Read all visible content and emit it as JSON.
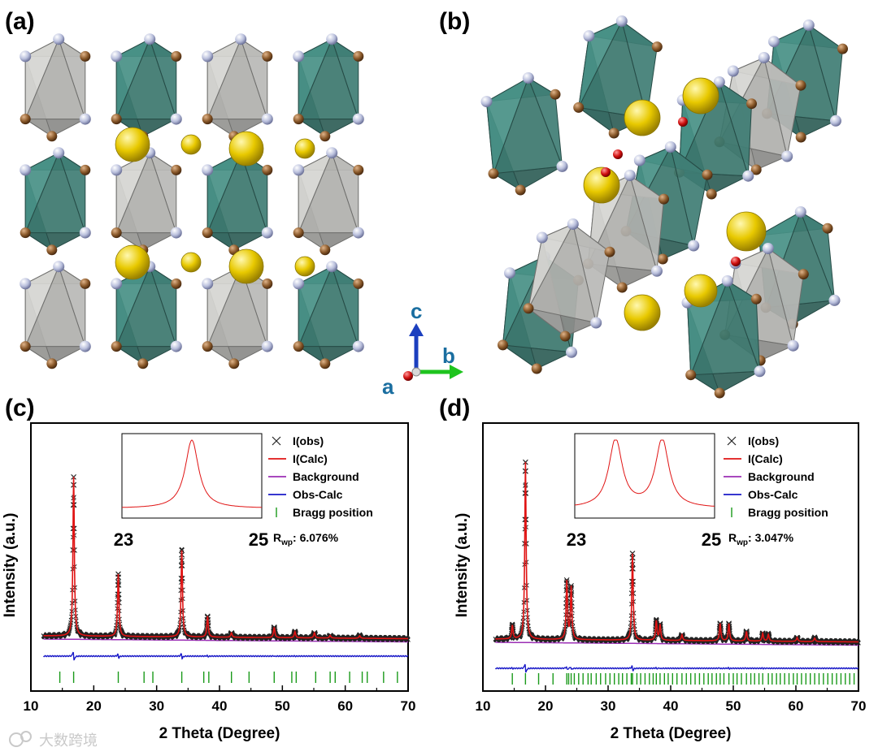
{
  "panels": {
    "a": "(a)",
    "b": "(b)",
    "c": "(c)",
    "d": "(d)"
  },
  "axes_triad": {
    "a": "a",
    "b": "b",
    "c": "c",
    "color_c": "#1c3fbf",
    "color_b": "#1ec41e",
    "color_a": "#c81414"
  },
  "colors": {
    "teal": "#3f7d74",
    "grey": "#b9b9b6",
    "brown": "#8b5a2b",
    "pale": "#b9bfdc",
    "yellow": "#e8c900",
    "obs": "#222222",
    "calc": "#e01414",
    "bg": "#9b2fb5",
    "diff": "#1a1ac8",
    "bragg": "#1a9a1a"
  },
  "watermark": "大数跨境",
  "legend": {
    "obs": "I(obs)",
    "calc": "I(Calc)",
    "bg": "Background",
    "diff": "Obs-Calc",
    "bragg": "Bragg position"
  },
  "chart_data": [
    {
      "type": "line",
      "panel": "c",
      "xlabel": "2 Theta (Degree)",
      "ylabel": "Intensity (a.u.)",
      "xlim": [
        10,
        70
      ],
      "xticks": [
        "10",
        "20",
        "30",
        "40",
        "50",
        "60",
        "70"
      ],
      "rwp_prefix": "R",
      "rwp_sub": "wp",
      "rwp_value": ": 6.076%",
      "inset": {
        "xmin_label": "23",
        "xmax_label": "25",
        "peak_positions": [
          24.0
        ]
      },
      "peaks": [
        {
          "pos": 16.8,
          "h": 0.92
        },
        {
          "pos": 23.9,
          "h": 0.36
        },
        {
          "pos": 34.0,
          "h": 0.5
        },
        {
          "pos": 38.1,
          "h": 0.12
        },
        {
          "pos": 41.9,
          "h": 0.025
        },
        {
          "pos": 48.7,
          "h": 0.06
        },
        {
          "pos": 52.0,
          "h": 0.035
        },
        {
          "pos": 55.1,
          "h": 0.03
        },
        {
          "pos": 57.6,
          "h": 0.015
        },
        {
          "pos": 62.3,
          "h": 0.015
        }
      ],
      "bragg_positions": [
        14.6,
        16.8,
        23.9,
        28.0,
        29.4,
        34.0,
        37.5,
        38.3,
        41.9,
        44.7,
        48.7,
        51.5,
        52.2,
        55.3,
        57.6,
        58.4,
        60.7,
        62.7,
        63.5,
        66.1,
        68.3
      ]
    },
    {
      "type": "line",
      "panel": "d",
      "xlabel": "2 Theta (Degree)",
      "ylabel": "Intensity (a.u.)",
      "xlim": [
        10,
        70
      ],
      "xticks": [
        "10",
        "20",
        "30",
        "40",
        "50",
        "60",
        "70"
      ],
      "rwp_prefix": "R",
      "rwp_sub": "wp",
      "rwp_value": ": 3.047%",
      "inset": {
        "xmin_label": "23",
        "xmax_label": "25",
        "peak_positions": [
          23.5,
          24.3
        ]
      },
      "peaks": [
        {
          "pos": 14.7,
          "h": 0.07
        },
        {
          "pos": 16.8,
          "h": 0.92
        },
        {
          "pos": 23.4,
          "h": 0.3
        },
        {
          "pos": 24.1,
          "h": 0.27
        },
        {
          "pos": 33.9,
          "h": 0.45
        },
        {
          "pos": 37.7,
          "h": 0.1
        },
        {
          "pos": 38.3,
          "h": 0.08
        },
        {
          "pos": 41.8,
          "h": 0.03
        },
        {
          "pos": 47.9,
          "h": 0.09
        },
        {
          "pos": 49.3,
          "h": 0.09
        },
        {
          "pos": 52.1,
          "h": 0.05
        },
        {
          "pos": 54.7,
          "h": 0.04
        },
        {
          "pos": 55.6,
          "h": 0.035
        },
        {
          "pos": 60.2,
          "h": 0.02
        },
        {
          "pos": 63.0,
          "h": 0.018
        }
      ],
      "bragg_positions": [
        14.7,
        16.8,
        18.9,
        21.2,
        23.4,
        23.7,
        24.1,
        24.6,
        25.3,
        26.0,
        26.8,
        27.3,
        28.1,
        28.8,
        29.6,
        30.3,
        31.0,
        31.7,
        32.3,
        33.0,
        33.7,
        33.9,
        34.6,
        35.2,
        35.9,
        36.6,
        37.2,
        37.7,
        38.3,
        39.0,
        39.6,
        40.3,
        41.0,
        41.8,
        42.5,
        43.2,
        43.9,
        44.6,
        45.3,
        46.0,
        46.6,
        47.3,
        47.9,
        48.5,
        49.3,
        50.0,
        50.6,
        51.3,
        52.1,
        52.8,
        53.4,
        54.1,
        54.7,
        55.6,
        56.2,
        56.9,
        57.5,
        58.2,
        58.9,
        59.6,
        60.2,
        60.9,
        61.6,
        62.3,
        63.0,
        63.7,
        64.4,
        65.1,
        65.8,
        66.5,
        67.2,
        67.9,
        68.6,
        69.3
      ]
    }
  ]
}
